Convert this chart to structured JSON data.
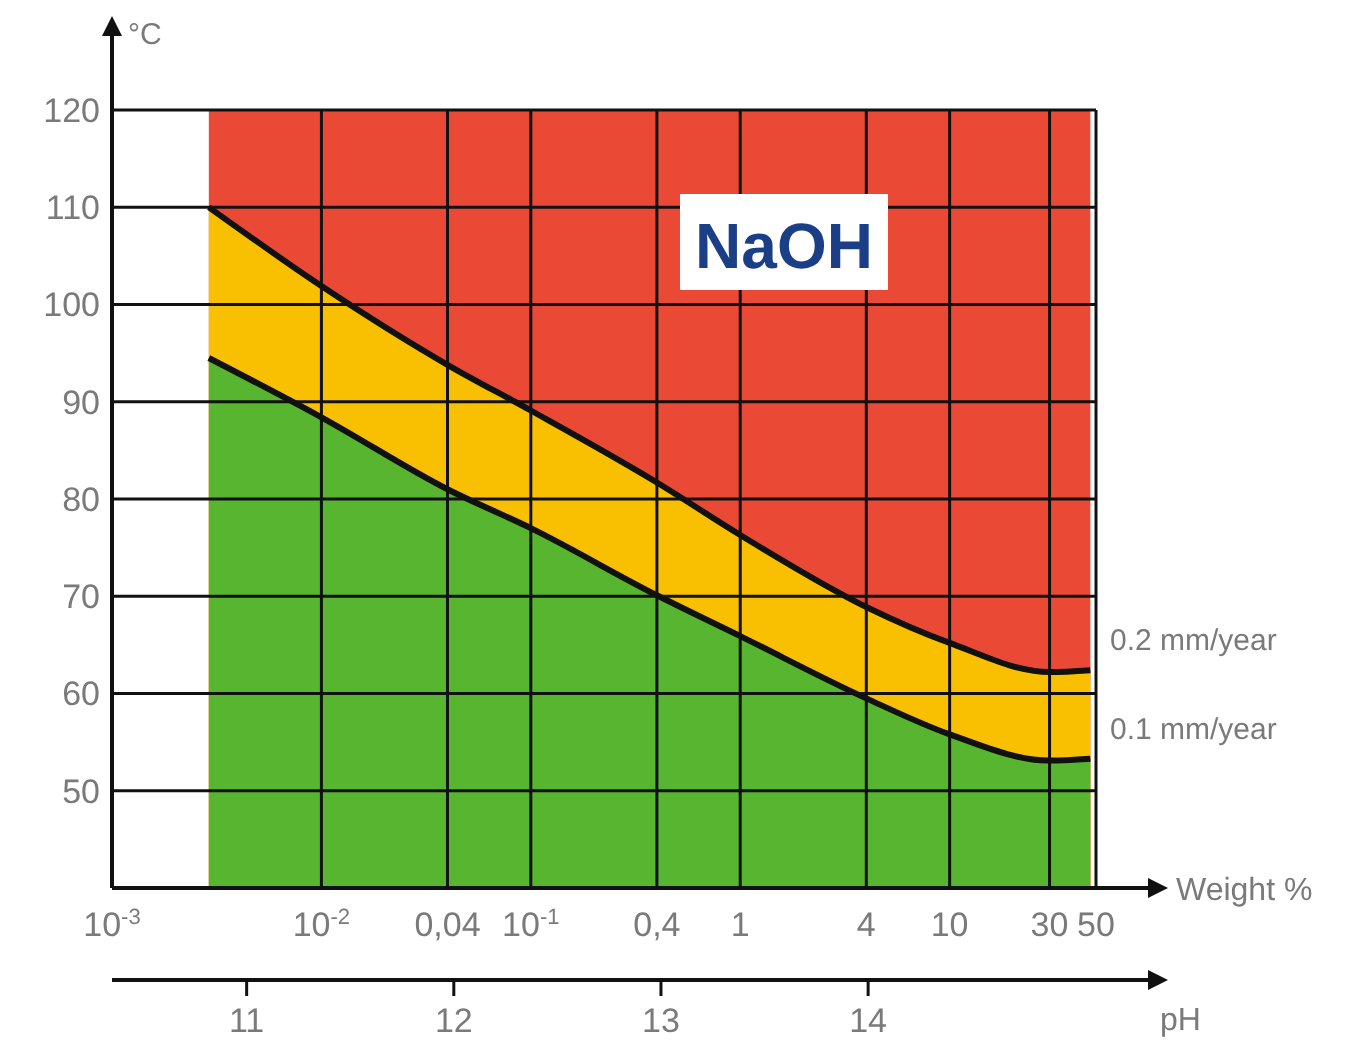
{
  "chart_data": {
    "type": "area",
    "title": "NaOH",
    "xlabel": "Weight %",
    "ylabel": "°C",
    "x2label": "pH",
    "log": "x",
    "grid": true,
    "x": [
      0.0029,
      0.01,
      0.04,
      0.1,
      0.4,
      1,
      4,
      10,
      30,
      47
    ],
    "xlim": [
      0.001,
      50
    ],
    "xticks": [
      {
        "value": 0.001,
        "label": "10$^{-3}$"
      },
      {
        "value": 0.01,
        "label": "10$^{-2}$"
      },
      {
        "value": 0.04,
        "label": "0,04"
      },
      {
        "value": 0.1,
        "label": "10$^{-1}$"
      },
      {
        "value": 0.4,
        "label": "0,4"
      },
      1,
      4,
      10,
      30,
      50
    ],
    "x2lim": [
      10.35,
      15.1
    ],
    "x2ticks": [
      11,
      12,
      13,
      14
    ],
    "ylim": [
      40,
      120
    ],
    "yticks": [
      50,
      60,
      70,
      80,
      90,
      100,
      110,
      120
    ],
    "bands": [
      {
        "axis": "x",
        "from": 0.0029,
        "to": 47,
        "color": "#ea4a35"
      }
    ],
    "series": [
      {
        "name": "0.2 mm/year",
        "color": "#f8c000",
        "values": [
          110,
          101.9,
          93.8,
          89.1,
          81.7,
          76.3,
          68.9,
          65.2,
          62.2,
          62.4
        ]
      },
      {
        "name": "0.1 mm/year",
        "color": "#58b530",
        "values": [
          94.5,
          88.4,
          81,
          77,
          70.1,
          65.9,
          59.5,
          55.8,
          53.1,
          53.3
        ]
      }
    ]
  }
}
